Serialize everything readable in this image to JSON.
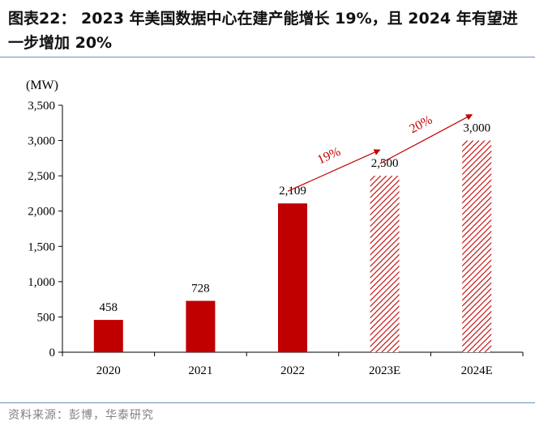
{
  "header": {
    "title": "图表22： 2023 年美国数据中心在建产能增长 19%，且 2024 年有望进一步增加 20%"
  },
  "footer": {
    "source": "资料来源：彭博，华泰研究"
  },
  "colors": {
    "bar": "#c00000",
    "arrow": "#c00000",
    "axis": "#000000",
    "rule": "#6f8fc2"
  },
  "chart_data": {
    "type": "bar",
    "ylabel": "(MW)",
    "ylim": [
      0,
      3500
    ],
    "ytick_step": 500,
    "ytick_labels": [
      "0",
      "500",
      "1,000",
      "1,500",
      "2,000",
      "2,500",
      "3,000",
      "3,500"
    ],
    "categories": [
      "2020",
      "2021",
      "2022",
      "2023E",
      "2024E"
    ],
    "values": [
      458,
      728,
      2109,
      2500,
      3000
    ],
    "value_labels": [
      "458",
      "728",
      "2,109",
      "2,500",
      "3,000"
    ],
    "estimated": [
      false,
      false,
      false,
      true,
      true
    ],
    "grid": false,
    "annotations": [
      {
        "text": "19%",
        "from_category": "2022",
        "to_category": "2023E"
      },
      {
        "text": "20%",
        "from_category": "2023E",
        "to_category": "2024E"
      }
    ]
  }
}
